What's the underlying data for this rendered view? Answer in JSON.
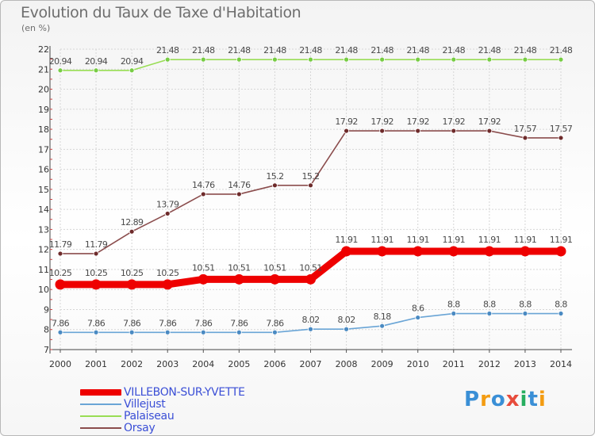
{
  "header": {
    "title": "Evolution du Taux de Taxe d'Habitation",
    "unit": "(en %)"
  },
  "brand": {
    "name": "Proxiti"
  },
  "chart_data": {
    "type": "line",
    "title": "Evolution du Taux de Taxe d'Habitation",
    "ylabel": "(en %)",
    "xlabel": "",
    "ylim": [
      7,
      22
    ],
    "yticks": [
      7,
      8,
      9,
      10,
      11,
      12,
      13,
      14,
      15,
      16,
      17,
      18,
      19,
      20,
      21,
      22
    ],
    "grid": true,
    "legend_position": "bottom-left",
    "categories": [
      "2000",
      "2001",
      "2002",
      "2003",
      "2004",
      "2005",
      "2006",
      "2007",
      "2008",
      "2009",
      "2010",
      "2011",
      "2012",
      "2013",
      "2014"
    ],
    "series": [
      {
        "name": "VILLEBON-SUR-YVETTE",
        "color": "#ee0000",
        "style": "thick",
        "values": [
          10.25,
          10.25,
          10.25,
          10.25,
          10.51,
          10.51,
          10.51,
          10.51,
          11.91,
          11.91,
          11.91,
          11.91,
          11.91,
          11.91,
          11.91
        ],
        "labels": [
          "10.25",
          "10.25",
          "10.25",
          "10.25",
          "10.51",
          "10.51",
          "10.51",
          "10.51",
          "11.91",
          "11.91",
          "11.91",
          "11.91",
          "11.91",
          "11.91",
          "11.91"
        ]
      },
      {
        "name": "Villejust",
        "color": "#6aa5d6",
        "marker": "#4a8ac2",
        "style": "thin",
        "values": [
          7.86,
          7.86,
          7.86,
          7.86,
          7.86,
          7.86,
          7.86,
          8.02,
          8.02,
          8.18,
          8.6,
          8.8,
          8.8,
          8.8,
          8.8
        ],
        "labels": [
          "7.86",
          "7.86",
          "7.86",
          "7.86",
          "7.86",
          "7.86",
          "7.86",
          "8.02",
          "8.02",
          "8.18",
          "8.6",
          "8.8",
          "8.8",
          "8.8",
          "8.8"
        ]
      },
      {
        "name": "Palaiseau",
        "color": "#99dd55",
        "marker": "#77cc44",
        "style": "thin",
        "values": [
          20.94,
          20.94,
          20.94,
          21.48,
          21.48,
          21.48,
          21.48,
          21.48,
          21.48,
          21.48,
          21.48,
          21.48,
          21.48,
          21.48,
          21.48
        ],
        "labels": [
          "20.94",
          "20.94",
          "20.94",
          "21.48",
          "21.48",
          "21.48",
          "21.48",
          "21.48",
          "21.48",
          "21.48",
          "21.48",
          "21.48",
          "21.48",
          "21.48",
          "21.48"
        ]
      },
      {
        "name": "Orsay",
        "color": "#8b4d4d",
        "marker": "#6e2b2b",
        "style": "thin",
        "values": [
          11.79,
          11.79,
          12.89,
          13.79,
          14.76,
          14.76,
          15.2,
          15.2,
          17.92,
          17.92,
          17.92,
          17.92,
          17.92,
          17.57,
          17.57
        ],
        "labels": [
          "11.79",
          "11.79",
          "12.89",
          "13.79",
          "14.76",
          "14.76",
          "15.2",
          "15.2",
          "17.92",
          "17.92",
          "17.92",
          "17.92",
          "17.92",
          "17.57",
          "17.57"
        ]
      }
    ]
  }
}
